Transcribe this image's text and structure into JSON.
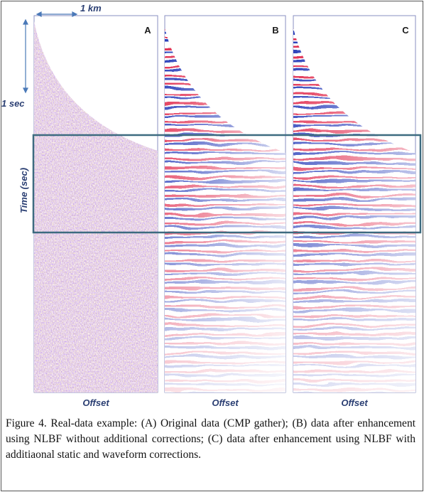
{
  "figure": {
    "scale_x": "1 km",
    "scale_y": "1 sec",
    "y_axis": "Time (sec)",
    "panels": [
      {
        "label": "A",
        "x_label": "Offset"
      },
      {
        "label": "B",
        "x_label": "Offset"
      },
      {
        "label": "C",
        "x_label": "Offset"
      }
    ]
  },
  "caption": "Figure 4. Real-data example: (A) Original data (CMP gather); (B) data after enhancement using NLBF without additional corrections; (C) data after enhancement using NLBF with additiaonal static and waveform corrections."
}
